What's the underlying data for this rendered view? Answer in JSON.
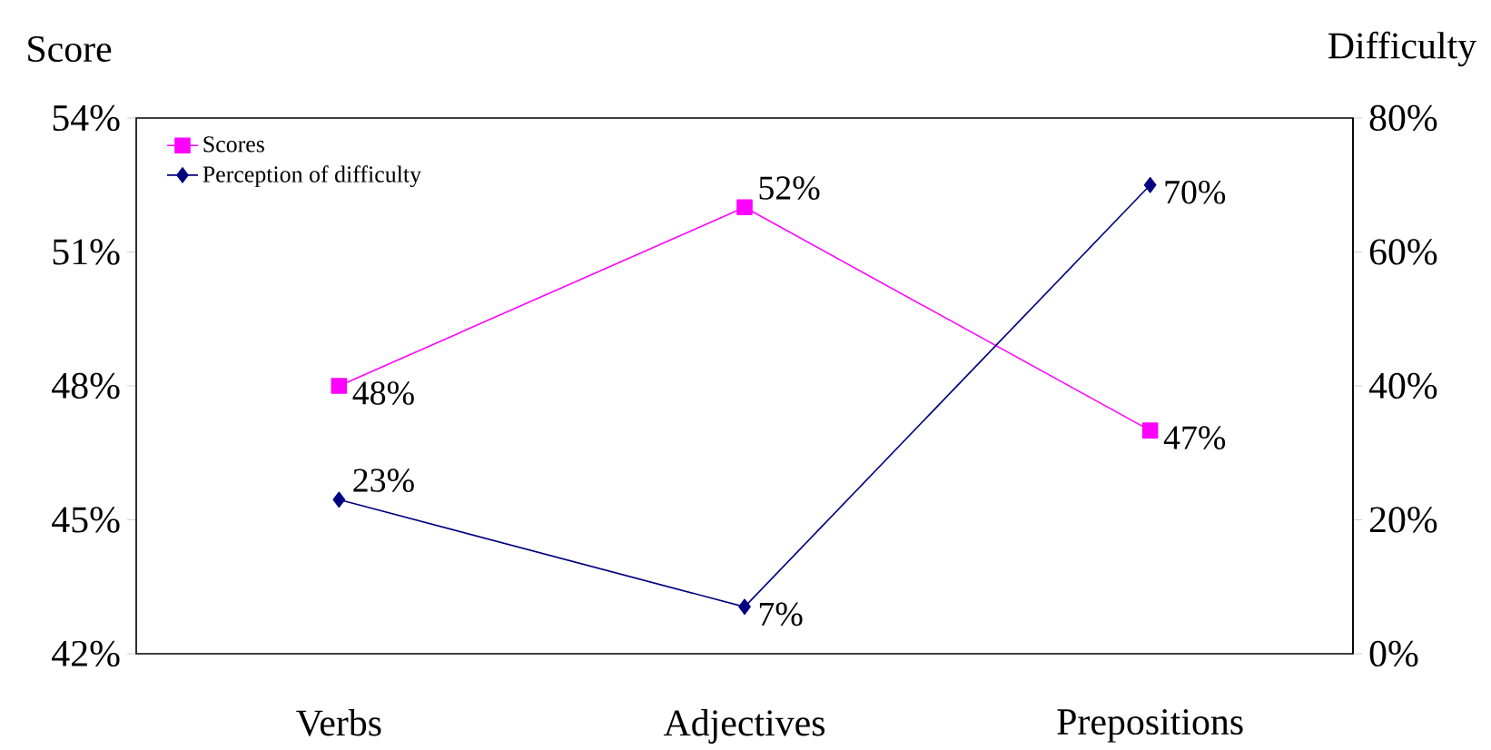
{
  "chart_data": {
    "type": "line",
    "ylabel": "Score",
    "y2label": "Difficulty",
    "categories": [
      "Verbs",
      "Adjectives",
      "Prepositions"
    ],
    "series": [
      {
        "name": "Scores",
        "color": "#ff00ff",
        "marker": "square",
        "values": [
          48,
          52,
          47
        ],
        "value_labels": [
          "48%",
          "52%",
          "47%"
        ]
      },
      {
        "name": "Perception of difficulty",
        "color": "#000080",
        "marker": "diamond",
        "axis": "y2",
        "values": [
          23,
          7,
          70
        ],
        "value_labels": [
          "23%",
          "7%",
          "70%"
        ]
      }
    ],
    "ylim": [
      42,
      54
    ],
    "yticks": [
      {
        "value": 42,
        "label": "42%"
      },
      {
        "value": 45,
        "label": "45%"
      },
      {
        "value": 48,
        "label": "48%"
      },
      {
        "value": 51,
        "label": "51%"
      },
      {
        "value": 54,
        "label": "54%"
      }
    ],
    "y2lim": [
      0,
      80
    ],
    "y2ticks": [
      {
        "value": 0,
        "label": "0%"
      },
      {
        "value": 20,
        "label": "20%"
      },
      {
        "value": 40,
        "label": "40%"
      },
      {
        "value": 60,
        "label": "60%"
      },
      {
        "value": 80,
        "label": "80%"
      }
    ],
    "legend": "top left",
    "grid": false,
    "line_style": "solid"
  }
}
